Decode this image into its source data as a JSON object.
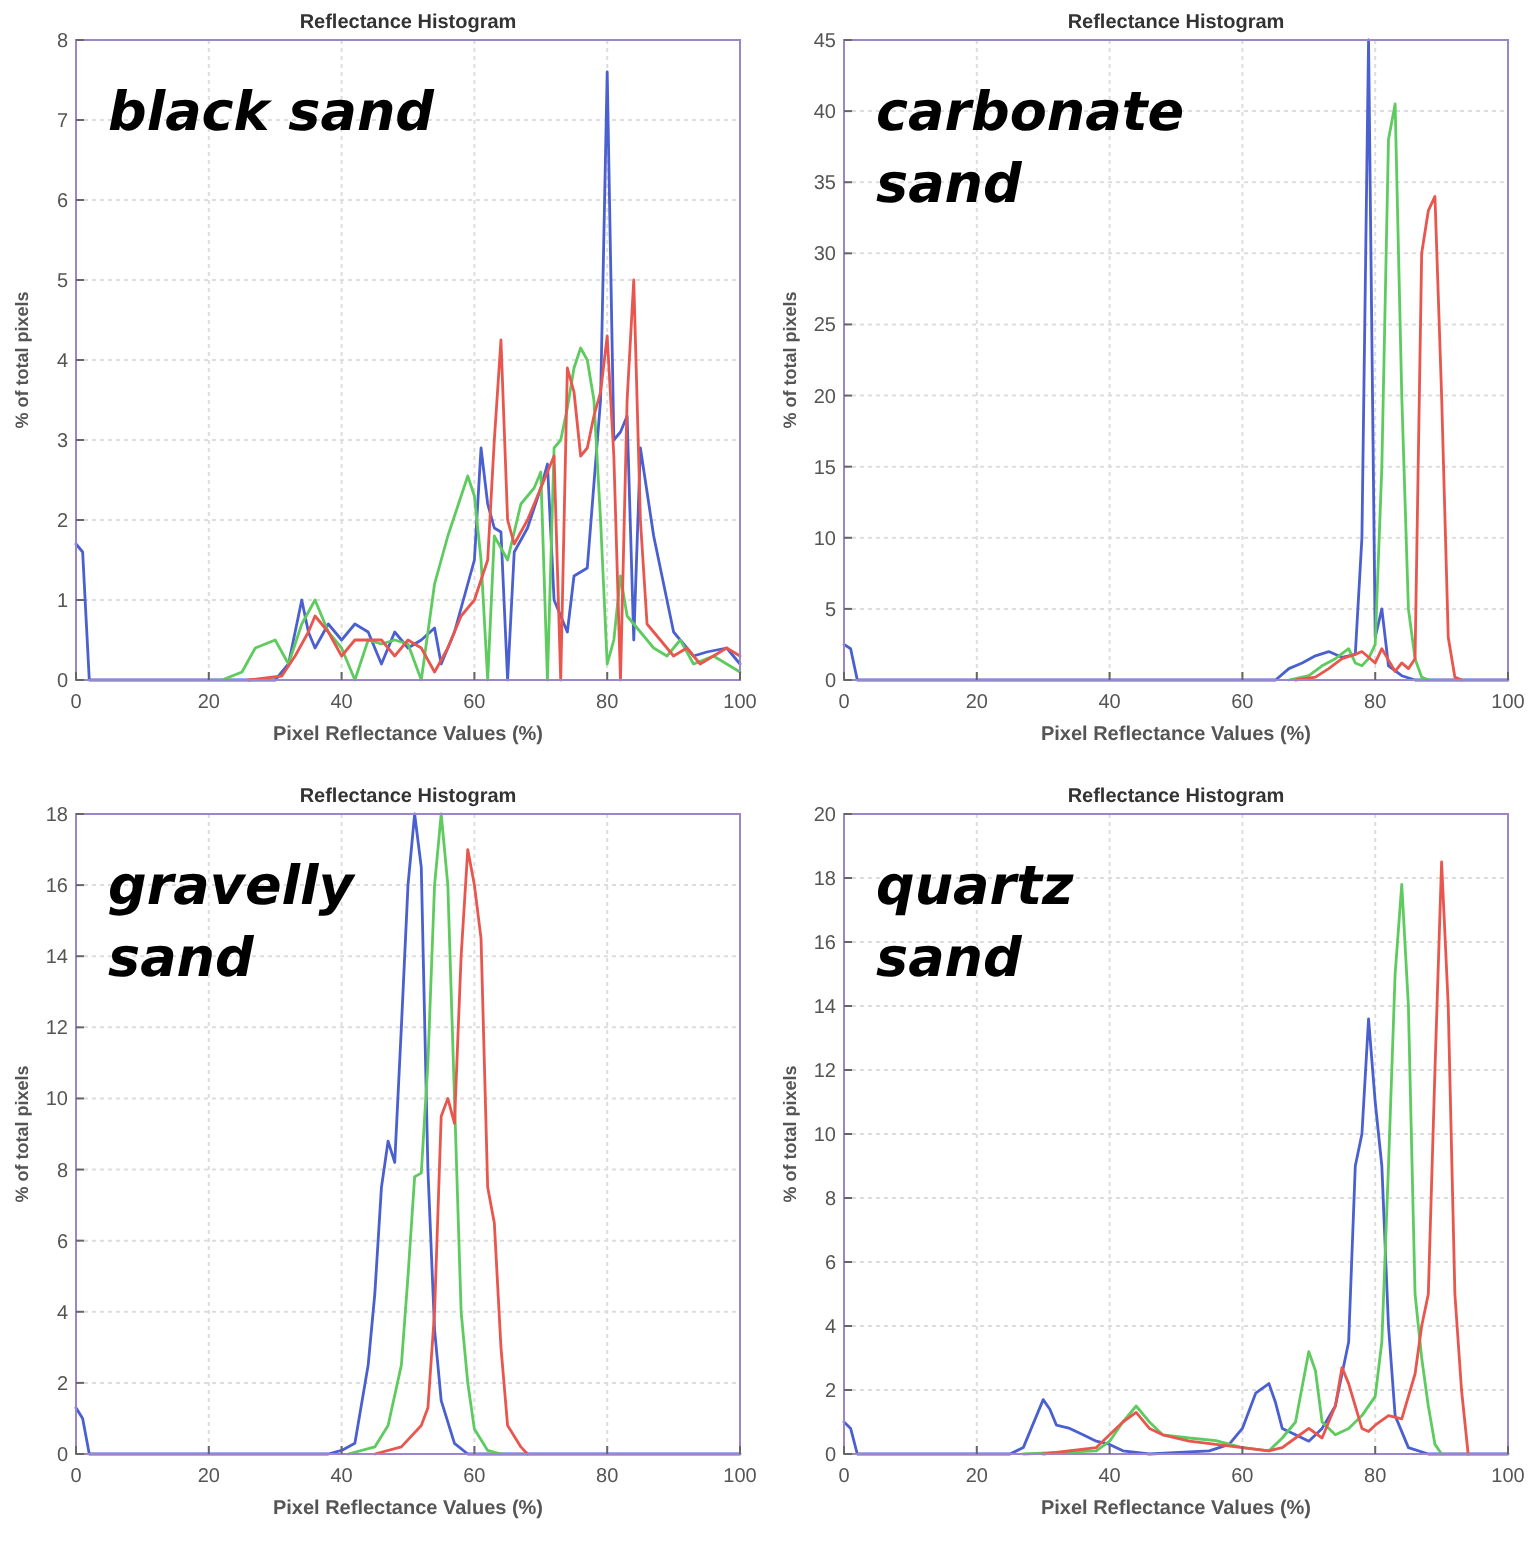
{
  "chart_data": [
    {
      "type": "line",
      "title": "Reflectance Histogram",
      "xlabel": "Pixel Reflectance Values (%)",
      "ylabel": "% of total pixels",
      "annotations": [
        "black sand"
      ],
      "xlim": [
        0,
        100
      ],
      "xticks": [
        0,
        20,
        40,
        60,
        80,
        100
      ],
      "ylim": [
        0,
        8
      ],
      "yticks": [
        0,
        1,
        2,
        3,
        4,
        5,
        6,
        7,
        8
      ],
      "grid": true,
      "series": [
        {
          "color": "#4a5fd0",
          "x": [
            0,
            1,
            2,
            30,
            32,
            34,
            35,
            36,
            38,
            40,
            42,
            44,
            46,
            48,
            50,
            52,
            54,
            55,
            57,
            60,
            61,
            62,
            63,
            64,
            65,
            66,
            68,
            70,
            71,
            72,
            74,
            75,
            77,
            79,
            80,
            81,
            82,
            83,
            84,
            85,
            87,
            90,
            93,
            95,
            98,
            100
          ],
          "values": [
            1.7,
            1.6,
            0,
            0,
            0.2,
            1.0,
            0.6,
            0.4,
            0.7,
            0.5,
            0.7,
            0.6,
            0.2,
            0.6,
            0.4,
            0.5,
            0.65,
            0.2,
            0.6,
            1.5,
            2.9,
            2.2,
            1.9,
            1.85,
            0,
            1.6,
            1.9,
            2.4,
            2.7,
            1.0,
            0.6,
            1.3,
            1.4,
            3.5,
            7.6,
            3.0,
            3.1,
            3.3,
            0.5,
            2.9,
            1.8,
            0.6,
            0.3,
            0.35,
            0.4,
            0.2
          ]
        },
        {
          "color": "#5ecb5e",
          "x": [
            22,
            25,
            27,
            30,
            32,
            34,
            36,
            38,
            40,
            42,
            44,
            46,
            48,
            50,
            52,
            54,
            56,
            58,
            59,
            60,
            61,
            62,
            63,
            65,
            67,
            69,
            70,
            71,
            72,
            73,
            74,
            75,
            76,
            77,
            78,
            79,
            80,
            81,
            82,
            83,
            85,
            87,
            89,
            91,
            93,
            96,
            100
          ],
          "values": [
            0,
            0.1,
            0.4,
            0.5,
            0.2,
            0.7,
            1.0,
            0.6,
            0.4,
            0,
            0.5,
            0.45,
            0.5,
            0.45,
            0,
            1.2,
            1.8,
            2.3,
            2.55,
            2.3,
            1.5,
            0,
            1.8,
            1.5,
            2.2,
            2.4,
            2.6,
            0,
            2.9,
            3.0,
            3.4,
            3.9,
            4.15,
            4.0,
            3.5,
            2.0,
            0.2,
            0.5,
            1.3,
            0.8,
            0.6,
            0.4,
            0.3,
            0.5,
            0.2,
            0.3,
            0.1
          ]
        },
        {
          "color": "#e8564e",
          "x": [
            26,
            31,
            33,
            35,
            36,
            38,
            40,
            42,
            44,
            46,
            48,
            50,
            52,
            54,
            56,
            58,
            60,
            62,
            63,
            64,
            65,
            66,
            68,
            70,
            72,
            73,
            74,
            75,
            76,
            77,
            78,
            79,
            80,
            81,
            82,
            83,
            84,
            85,
            86,
            88,
            90,
            92,
            94,
            96,
            98,
            100
          ],
          "values": [
            0,
            0.05,
            0.3,
            0.6,
            0.8,
            0.6,
            0.3,
            0.5,
            0.5,
            0.5,
            0.3,
            0.5,
            0.4,
            0.1,
            0.4,
            0.8,
            1.0,
            1.5,
            3.0,
            4.25,
            2.0,
            1.7,
            2.0,
            2.4,
            2.8,
            0,
            3.9,
            3.6,
            2.8,
            2.9,
            3.3,
            3.6,
            4.3,
            2.8,
            0,
            3.5,
            5.0,
            2.0,
            0.7,
            0.5,
            0.3,
            0.4,
            0.2,
            0.3,
            0.4,
            0.3
          ]
        }
      ]
    },
    {
      "type": "line",
      "title": "Reflectance Histogram",
      "xlabel": "Pixel Reflectance Values (%)",
      "ylabel": "% of total pixels",
      "annotations": [
        "carbonate\nsand"
      ],
      "xlim": [
        0,
        100
      ],
      "xticks": [
        0,
        20,
        40,
        60,
        80,
        100
      ],
      "ylim": [
        0,
        45
      ],
      "yticks": [
        0,
        5,
        10,
        15,
        20,
        25,
        30,
        35,
        40,
        45
      ],
      "grid": true,
      "series": [
        {
          "color": "#4a5fd0",
          "x": [
            0,
            1,
            2,
            65,
            67,
            69,
            71,
            73,
            75,
            77,
            78,
            79,
            80,
            81,
            82,
            84,
            86,
            100
          ],
          "values": [
            2.5,
            2.2,
            0,
            0,
            0.8,
            1.2,
            1.7,
            2.0,
            1.6,
            1.8,
            10,
            45,
            3.0,
            5.0,
            1.0,
            0.3,
            0,
            0
          ]
        },
        {
          "color": "#5ecb5e",
          "x": [
            67,
            70,
            72,
            74,
            76,
            77,
            78,
            79,
            80,
            81,
            82,
            83,
            84,
            85,
            86,
            87,
            88
          ],
          "values": [
            0,
            0.3,
            1.0,
            1.5,
            2.2,
            1.2,
            1.0,
            1.5,
            2.5,
            15,
            38,
            40.5,
            20,
            5,
            1.5,
            0.2,
            0
          ]
        },
        {
          "color": "#e8564e",
          "x": [
            68,
            71,
            73,
            75,
            77,
            78,
            79,
            80,
            81,
            82,
            83,
            84,
            85,
            86,
            87,
            88,
            89,
            90,
            91,
            92,
            93
          ],
          "values": [
            0,
            0.2,
            0.8,
            1.5,
            1.8,
            2.0,
            1.6,
            1.2,
            2.2,
            1.4,
            0.6,
            1.2,
            0.8,
            1.5,
            30,
            33,
            34,
            20,
            3,
            0.2,
            0
          ]
        }
      ]
    },
    {
      "type": "line",
      "title": "Reflectance Histogram",
      "xlabel": "Pixel Reflectance Values (%)",
      "ylabel": "% of total pixels",
      "annotations": [
        "gravelly\nsand"
      ],
      "xlim": [
        0,
        100
      ],
      "xticks": [
        0,
        20,
        40,
        60,
        80,
        100
      ],
      "ylim": [
        0,
        18
      ],
      "yticks": [
        0,
        2,
        4,
        6,
        8,
        10,
        12,
        14,
        16,
        18
      ],
      "grid": true,
      "series": [
        {
          "color": "#4a5fd0",
          "x": [
            0,
            1,
            2,
            38,
            40,
            42,
            44,
            45,
            46,
            47,
            48,
            49,
            50,
            51,
            52,
            53,
            54,
            55,
            57,
            59,
            100
          ],
          "values": [
            1.3,
            1.0,
            0,
            0,
            0.1,
            0.3,
            2.5,
            4.5,
            7.5,
            8.8,
            8.2,
            12,
            16,
            18,
            16.5,
            8,
            3.5,
            1.5,
            0.3,
            0,
            0
          ]
        },
        {
          "color": "#5ecb5e",
          "x": [
            41,
            45,
            47,
            49,
            50,
            51,
            52,
            53,
            54,
            55,
            56,
            57,
            58,
            59,
            60,
            62,
            64
          ],
          "values": [
            0,
            0.2,
            0.8,
            2.5,
            5,
            7.8,
            7.9,
            11,
            16,
            18,
            16,
            10,
            4,
            2,
            0.7,
            0.1,
            0
          ]
        },
        {
          "color": "#e8564e",
          "x": [
            45,
            49,
            52,
            53,
            54,
            55,
            56,
            57,
            58,
            59,
            60,
            61,
            62,
            63,
            64,
            65,
            67,
            68
          ],
          "values": [
            0,
            0.2,
            0.8,
            1.3,
            4,
            9.5,
            10,
            9.3,
            14,
            17,
            16,
            14.5,
            7.5,
            6.5,
            3,
            0.8,
            0.2,
            0
          ]
        }
      ]
    },
    {
      "type": "line",
      "title": "Reflectance Histogram",
      "xlabel": "Pixel Reflectance Values (%)",
      "ylabel": "% of total pixels",
      "annotations": [
        "quartz\nsand"
      ],
      "xlim": [
        0,
        100
      ],
      "xticks": [
        0,
        20,
        40,
        60,
        80,
        100
      ],
      "ylim": [
        0,
        20
      ],
      "yticks": [
        0,
        2,
        4,
        6,
        8,
        10,
        12,
        14,
        16,
        18,
        20
      ],
      "grid": true,
      "series": [
        {
          "color": "#4a5fd0",
          "x": [
            0,
            1,
            2,
            25,
            27,
            29,
            30,
            31,
            32,
            34,
            36,
            38,
            40,
            42,
            46,
            55,
            58,
            60,
            62,
            64,
            65,
            66,
            68,
            70,
            72,
            74,
            76,
            77,
            78,
            79,
            80,
            81,
            82,
            83,
            85,
            88,
            100
          ],
          "values": [
            1.0,
            0.8,
            0,
            0,
            0.2,
            1.2,
            1.7,
            1.4,
            0.9,
            0.8,
            0.6,
            0.4,
            0.3,
            0.1,
            0,
            0.1,
            0.3,
            0.8,
            1.9,
            2.2,
            1.6,
            0.8,
            0.6,
            0.4,
            0.8,
            1.5,
            3.5,
            9,
            10,
            13.6,
            11,
            9,
            4,
            1.2,
            0.2,
            0,
            0
          ]
        },
        {
          "color": "#5ecb5e",
          "x": [
            27,
            38,
            40,
            42,
            44,
            46,
            48,
            52,
            56,
            60,
            64,
            66,
            68,
            70,
            71,
            72,
            74,
            76,
            78,
            80,
            81,
            82,
            83,
            84,
            85,
            86,
            87,
            88,
            89,
            90
          ],
          "values": [
            0,
            0.1,
            0.4,
            1.0,
            1.5,
            1.0,
            0.6,
            0.5,
            0.42,
            0.2,
            0.1,
            0.5,
            1.0,
            3.2,
            2.6,
            1.0,
            0.6,
            0.8,
            1.2,
            1.8,
            3.5,
            9,
            15,
            17.8,
            14,
            5,
            3,
            1.5,
            0.3,
            0
          ]
        },
        {
          "color": "#e8564e",
          "x": [
            30,
            38,
            40,
            42,
            44,
            46,
            48,
            52,
            56,
            60,
            64,
            66,
            68,
            70,
            72,
            74,
            75,
            76,
            77,
            78,
            79,
            80,
            82,
            84,
            86,
            87,
            88,
            89,
            90,
            91,
            92,
            93,
            94
          ],
          "values": [
            0,
            0.2,
            0.6,
            1.0,
            1.3,
            0.8,
            0.6,
            0.4,
            0.3,
            0.2,
            0.1,
            0.2,
            0.5,
            0.8,
            0.5,
            1.5,
            2.7,
            2.2,
            1.5,
            0.8,
            0.7,
            0.9,
            1.2,
            1.1,
            2.5,
            4,
            5,
            12,
            18.5,
            14,
            5,
            2,
            0
          ]
        }
      ]
    }
  ]
}
